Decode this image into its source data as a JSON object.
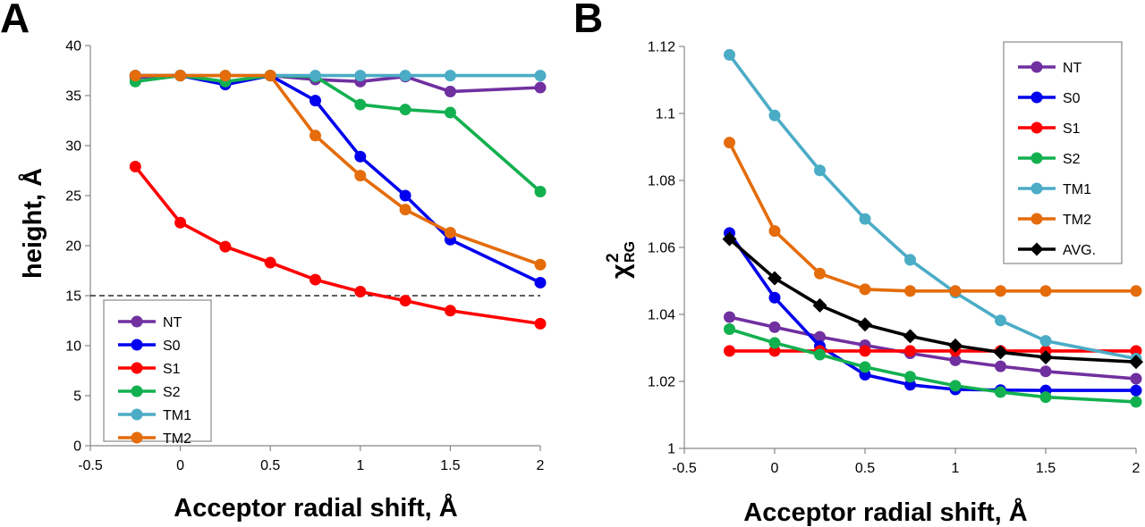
{
  "chart_data": [
    {
      "panel_label": "A",
      "type": "line",
      "xlabel": "Acceptor radial shift, Å",
      "ylabel": "height, Å",
      "xlim": [
        -0.5,
        2
      ],
      "ylim": [
        0,
        40
      ],
      "xticks": [
        "-0.5",
        "0",
        "0.5",
        "1",
        "1.5",
        "2"
      ],
      "yticks": [
        "0",
        "5",
        "10",
        "15",
        "20",
        "25",
        "30",
        "35",
        "40"
      ],
      "legend_position": "bottom-left",
      "reference_line": {
        "y": 15,
        "style": "dashed"
      },
      "x": [
        -0.25,
        0,
        0.25,
        0.5,
        0.75,
        1,
        1.25,
        1.5,
        2
      ],
      "series": [
        {
          "name": "NT",
          "color": "#7030a0",
          "marker": "circle",
          "values": [
            36.8,
            37.0,
            36.2,
            37.0,
            36.6,
            36.4,
            36.9,
            35.4,
            35.8
          ]
        },
        {
          "name": "S0",
          "color": "#0000ee",
          "marker": "circle",
          "values": [
            37.0,
            37.0,
            36.1,
            37.0,
            34.5,
            28.9,
            25.0,
            20.6,
            16.3
          ]
        },
        {
          "name": "S1",
          "color": "#ff0000",
          "marker": "circle",
          "values": [
            27.9,
            22.3,
            19.9,
            18.3,
            16.6,
            15.4,
            14.5,
            13.5,
            12.2
          ]
        },
        {
          "name": "S2",
          "color": "#13b050",
          "marker": "circle",
          "values": [
            36.4,
            37.0,
            36.4,
            37.0,
            36.9,
            34.1,
            33.6,
            33.3,
            25.4
          ]
        },
        {
          "name": "TM1",
          "color": "#4bacc6",
          "marker": "circle",
          "values": [
            37.0,
            37.0,
            37.0,
            37.0,
            37.0,
            37.0,
            37.0,
            37.0,
            37.0
          ]
        },
        {
          "name": "TM2",
          "color": "#e46c0a",
          "marker": "circle",
          "values": [
            37.0,
            37.0,
            37.0,
            37.0,
            31.0,
            27.0,
            23.6,
            21.3,
            18.1
          ]
        }
      ]
    },
    {
      "panel_label": "B",
      "type": "line",
      "xlabel": "Acceptor radial shift, Å",
      "ylabel_main": "χ",
      "ylabel_sup": "2",
      "ylabel_sub": "RG",
      "xlim": [
        -0.5,
        2
      ],
      "ylim": [
        1,
        1.12
      ],
      "xticks": [
        "-0.5",
        "0",
        "0.5",
        "1",
        "1.5",
        "2"
      ],
      "yticks": [
        "1",
        "1.02",
        "1.04",
        "1.06",
        "1.08",
        "1.1",
        "1.12"
      ],
      "legend_position": "top-right",
      "x": [
        -0.25,
        0,
        0.25,
        0.5,
        0.75,
        1,
        1.25,
        1.5,
        2
      ],
      "series": [
        {
          "name": "NT",
          "color": "#7030a0",
          "marker": "circle",
          "values": [
            1.0392,
            1.0362,
            1.0333,
            1.0308,
            1.0284,
            1.0263,
            1.0245,
            1.023,
            1.0208
          ]
        },
        {
          "name": "S0",
          "color": "#0000ee",
          "marker": "circle",
          "values": [
            1.0643,
            1.045,
            1.0305,
            1.022,
            1.019,
            1.0176,
            1.0174,
            1.0173,
            1.0173
          ]
        },
        {
          "name": "S1",
          "color": "#ff0000",
          "marker": "circle",
          "values": [
            1.0291,
            1.0291,
            1.0291,
            1.0291,
            1.0291,
            1.0291,
            1.0291,
            1.0291,
            1.0291
          ]
        },
        {
          "name": "S2",
          "color": "#13b050",
          "marker": "circle",
          "values": [
            1.0356,
            1.0315,
            1.028,
            1.0243,
            1.0214,
            1.0187,
            1.0168,
            1.0153,
            1.0139
          ]
        },
        {
          "name": "TM1",
          "color": "#4bacc6",
          "marker": "circle",
          "values": [
            1.1175,
            1.0994,
            1.083,
            1.0685,
            1.0563,
            1.0465,
            1.0382,
            1.0321,
            1.0268
          ]
        },
        {
          "name": "TM2",
          "color": "#e46c0a",
          "marker": "circle",
          "values": [
            1.0913,
            1.0649,
            1.0522,
            1.0475,
            1.047,
            1.047,
            1.047,
            1.047,
            1.047
          ]
        },
        {
          "name": "AVG.",
          "color": "#000000",
          "marker": "diamond",
          "values": [
            1.0625,
            1.0508,
            1.0427,
            1.037,
            1.0335,
            1.0307,
            1.0287,
            1.0272,
            1.0258
          ]
        }
      ]
    }
  ]
}
